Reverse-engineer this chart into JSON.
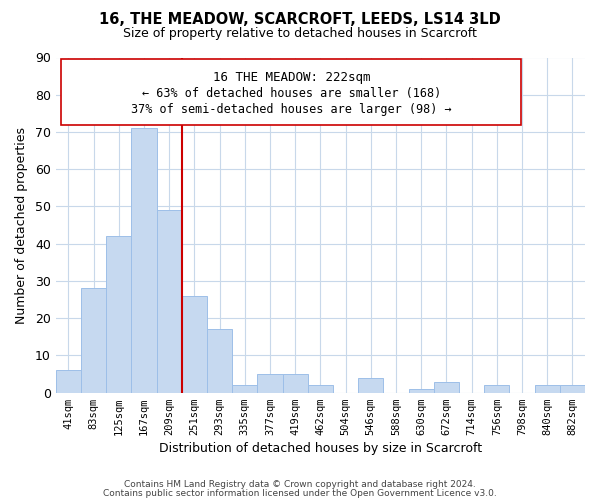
{
  "title": "16, THE MEADOW, SCARCROFT, LEEDS, LS14 3LD",
  "subtitle": "Size of property relative to detached houses in Scarcroft",
  "xlabel": "Distribution of detached houses by size in Scarcroft",
  "ylabel": "Number of detached properties",
  "bar_labels": [
    "41sqm",
    "83sqm",
    "125sqm",
    "167sqm",
    "209sqm",
    "251sqm",
    "293sqm",
    "335sqm",
    "377sqm",
    "419sqm",
    "462sqm",
    "504sqm",
    "546sqm",
    "588sqm",
    "630sqm",
    "672sqm",
    "714sqm",
    "756sqm",
    "798sqm",
    "840sqm",
    "882sqm"
  ],
  "bar_values": [
    6,
    28,
    42,
    71,
    49,
    26,
    17,
    2,
    5,
    5,
    2,
    0,
    4,
    0,
    1,
    3,
    0,
    2,
    0,
    2,
    2
  ],
  "bar_color": "#c6d9f0",
  "bar_edge_color": "#9dbfe8",
  "highlight_line_color": "#cc0000",
  "ylim": [
    0,
    90
  ],
  "yticks": [
    0,
    10,
    20,
    30,
    40,
    50,
    60,
    70,
    80,
    90
  ],
  "ann_line1": "16 THE MEADOW: 222sqm",
  "ann_line2": "← 63% of detached houses are smaller (168)",
  "ann_line3": "37% of semi-detached houses are larger (98) →",
  "footer_line1": "Contains HM Land Registry data © Crown copyright and database right 2024.",
  "footer_line2": "Contains public sector information licensed under the Open Government Licence v3.0.",
  "bg_color": "#ffffff",
  "grid_color": "#c8d8ea"
}
